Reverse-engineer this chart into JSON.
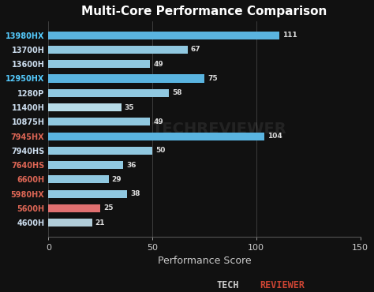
{
  "title": "Multi-Core Performance Comparison",
  "xlabel": "Performance Score",
  "categories": [
    "13980HX",
    "13700H",
    "13600H",
    "12950HX",
    "1280P",
    "11400H",
    "10875H",
    "7945HX",
    "7940HS",
    "7640HS",
    "6600H",
    "5980HX",
    "5600H",
    "4600H"
  ],
  "values": [
    111,
    67,
    49,
    75,
    58,
    35,
    49,
    104,
    50,
    36,
    29,
    38,
    25,
    21
  ],
  "bar_colors": [
    "#5ab4e0",
    "#90c8e0",
    "#90c8e0",
    "#5ab4e0",
    "#90c8e0",
    "#b8dce8",
    "#90c8e0",
    "#5ab4e0",
    "#90c8e0",
    "#90c8e0",
    "#90c8e0",
    "#90c8e0",
    "#e07070",
    "#b0ccd8"
  ],
  "label_colors": [
    "#55ccff",
    "#ccddee",
    "#ccddee",
    "#55ccff",
    "#ccddee",
    "#ccddee",
    "#ccddee",
    "#dd6655",
    "#ccddee",
    "#dd6655",
    "#dd6655",
    "#dd6655",
    "#dd6655",
    "#ccddee"
  ],
  "xlim": [
    0,
    150
  ],
  "xticks": [
    0,
    50,
    100,
    150
  ],
  "background_color": "#111111",
  "plot_bg_color": "#00000000",
  "title_color": "#ffffff",
  "xlabel_color": "#cccccc",
  "value_label_color": "#dddddd",
  "techreviewer_color_tech": "#cccccc",
  "techreviewer_color_reviewer": "#cc4433",
  "watermark_alpha": 0.08,
  "bar_height": 0.55
}
